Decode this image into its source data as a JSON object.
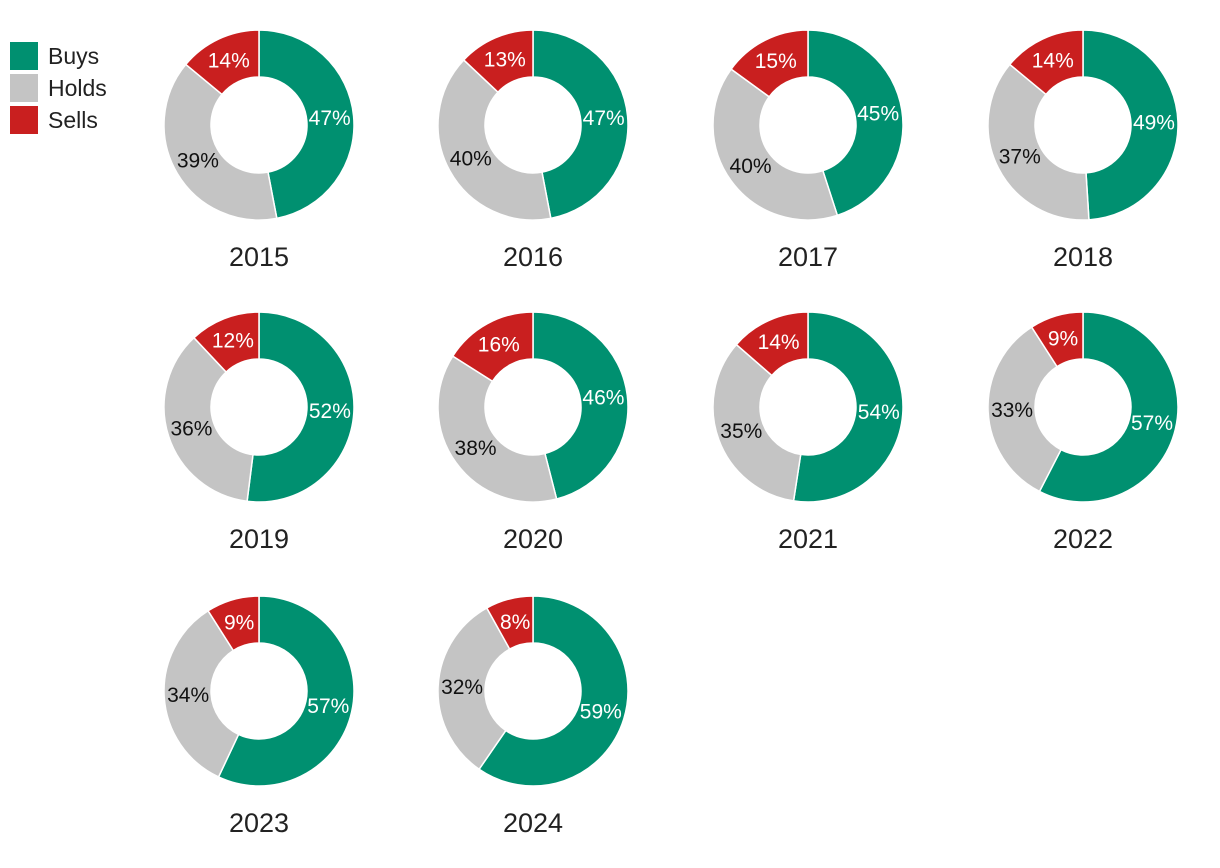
{
  "chart_data": {
    "type": "donut",
    "legend": [
      {
        "name": "Buys",
        "color": "#009070"
      },
      {
        "name": "Holds",
        "color": "#C4C4C4"
      },
      {
        "name": "Sells",
        "color": "#C91F1F"
      }
    ],
    "legend_placement": "top-left",
    "charts": [
      {
        "year": "2015",
        "buys": 47,
        "holds": 39,
        "sells": 14
      },
      {
        "year": "2016",
        "buys": 47,
        "holds": 40,
        "sells": 13
      },
      {
        "year": "2017",
        "buys": 45,
        "holds": 40,
        "sells": 15
      },
      {
        "year": "2018",
        "buys": 49,
        "holds": 37,
        "sells": 14
      },
      {
        "year": "2019",
        "buys": 52,
        "holds": 36,
        "sells": 12
      },
      {
        "year": "2020",
        "buys": 46,
        "holds": 38,
        "sells": 16
      },
      {
        "year": "2021",
        "buys": 54,
        "holds": 35,
        "sells": 14
      },
      {
        "year": "2022",
        "buys": 57,
        "holds": 33,
        "sells": 9
      },
      {
        "year": "2023",
        "buys": 57,
        "holds": 34,
        "sells": 9
      },
      {
        "year": "2024",
        "buys": 59,
        "holds": 32,
        "sells": 8
      }
    ]
  }
}
